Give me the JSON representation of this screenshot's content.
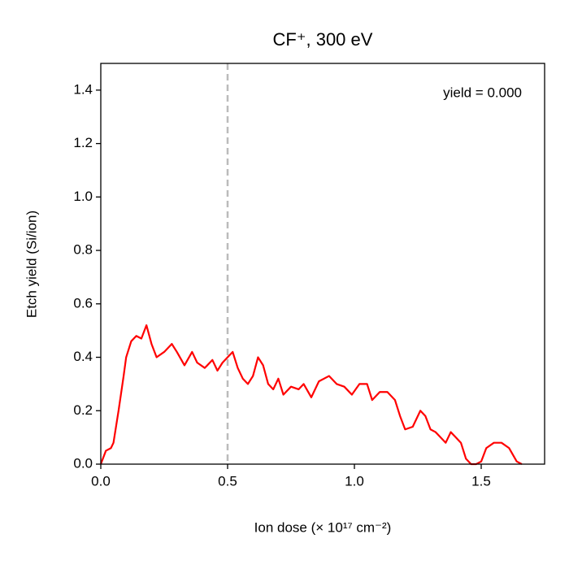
{
  "chart_data": {
    "type": "line",
    "title": "CF⁺, 300 eV",
    "x_label": "Ion dose (× 10¹⁷ cm⁻²)",
    "y_label": "Etch yield (Si/ion)",
    "annotation": "yield = 0.000",
    "vline": 0.5,
    "vline_color": "#bbbbbb",
    "x": [
      0,
      0.02,
      0.04,
      0.05,
      0.07,
      0.09,
      0.1,
      0.12,
      0.14,
      0.16,
      0.18,
      0.2,
      0.22,
      0.25,
      0.28,
      0.3,
      0.33,
      0.36,
      0.38,
      0.41,
      0.44,
      0.46,
      0.48,
      0.5,
      0.52,
      0.54,
      0.56,
      0.58,
      0.6,
      0.62,
      0.64,
      0.66,
      0.68,
      0.7,
      0.72,
      0.75,
      0.78,
      0.8,
      0.83,
      0.86,
      0.9,
      0.93,
      0.96,
      0.99,
      1.02,
      1.05,
      1.07,
      1.1,
      1.13,
      1.16,
      1.18,
      1.2,
      1.23,
      1.26,
      1.28,
      1.3,
      1.32,
      1.34,
      1.36,
      1.38,
      1.4,
      1.42,
      1.44,
      1.46,
      1.48,
      1.5,
      1.52,
      1.55,
      1.58,
      1.61,
      1.64,
      1.66
    ],
    "series": [
      {
        "name": "yield",
        "color": "#ff0000",
        "values": [
          0.0,
          0.05,
          0.06,
          0.08,
          0.2,
          0.33,
          0.4,
          0.46,
          0.48,
          0.47,
          0.52,
          0.45,
          0.4,
          0.42,
          0.45,
          0.42,
          0.37,
          0.42,
          0.38,
          0.36,
          0.39,
          0.35,
          0.38,
          0.4,
          0.42,
          0.36,
          0.32,
          0.3,
          0.33,
          0.4,
          0.37,
          0.3,
          0.28,
          0.32,
          0.26,
          0.29,
          0.28,
          0.3,
          0.25,
          0.31,
          0.33,
          0.3,
          0.29,
          0.26,
          0.3,
          0.3,
          0.24,
          0.27,
          0.27,
          0.24,
          0.18,
          0.13,
          0.14,
          0.2,
          0.18,
          0.13,
          0.12,
          0.1,
          0.08,
          0.12,
          0.1,
          0.08,
          0.02,
          0.0,
          0.0,
          0.01,
          0.06,
          0.08,
          0.08,
          0.06,
          0.01,
          0.0
        ]
      }
    ],
    "xlim": [
      0,
      1.75
    ],
    "xticks": [
      {
        "value": 0,
        "label": "0.0"
      },
      0.5,
      {
        "value": 1,
        "label": "1.0"
      },
      1.5
    ],
    "ylim": [
      0,
      1.5
    ],
    "yticks": [
      {
        "value": 0,
        "label": "0.0"
      },
      0.2,
      0.4,
      0.6,
      0.8,
      {
        "value": 1,
        "label": "1.0"
      },
      1.2,
      1.4
    ]
  }
}
